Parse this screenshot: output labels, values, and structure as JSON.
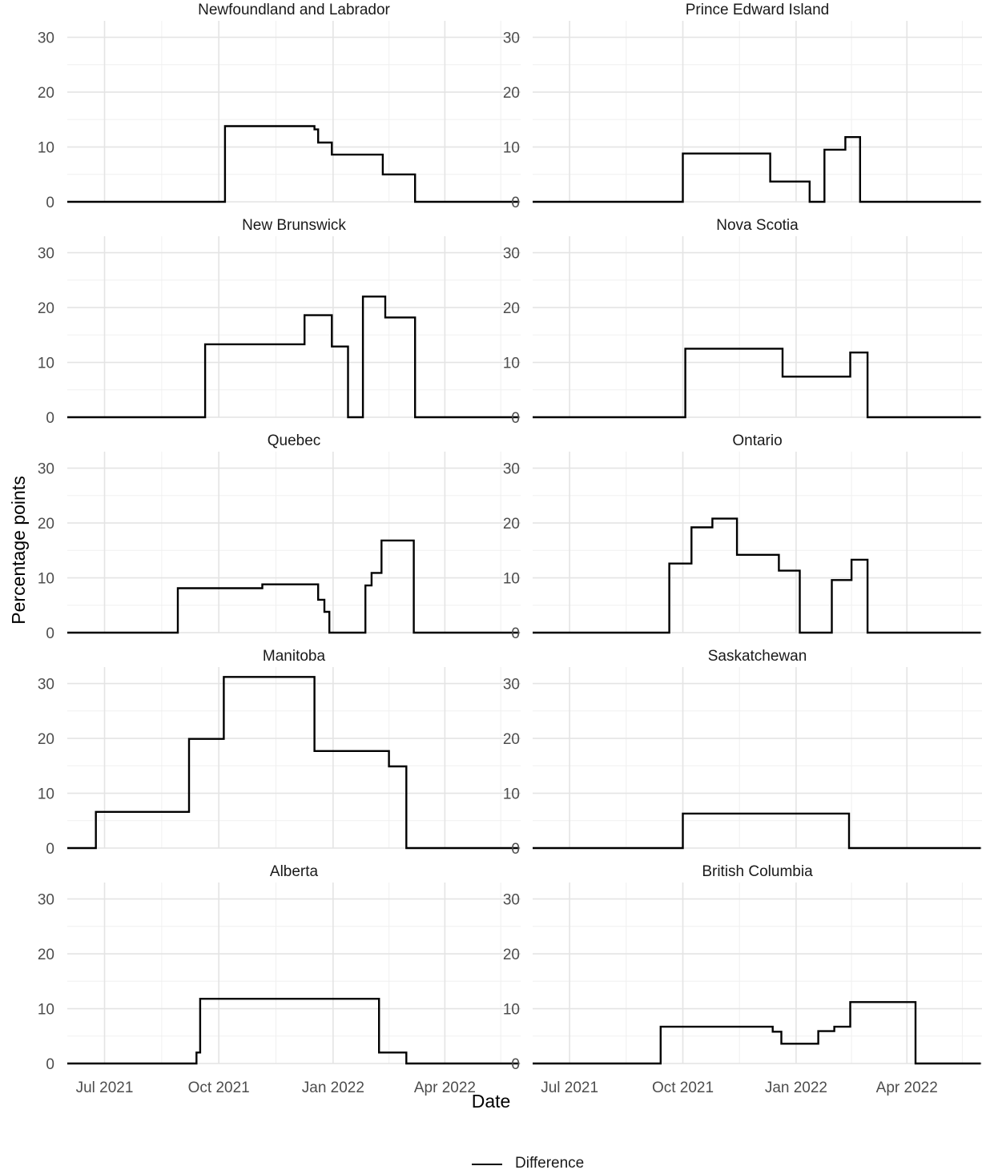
{
  "chart_data": {
    "type": "line",
    "step": true,
    "xlabel": "Date",
    "ylabel": "Percentage points",
    "ylim": [
      0,
      31
    ],
    "y_ticks": [
      0,
      10,
      20,
      30
    ],
    "xlim": [
      "2021-06-01",
      "2022-06-01"
    ],
    "x_ticks": [
      {
        "date": "2021-07-01",
        "label": "Jul 2021"
      },
      {
        "date": "2021-10-01",
        "label": "Oct 2021"
      },
      {
        "date": "2022-01-01",
        "label": "Jan 2022"
      },
      {
        "date": "2022-04-01",
        "label": "Apr 2022"
      }
    ],
    "grid": true,
    "line_color": "#000000",
    "legend": {
      "position": "bottom",
      "entries": [
        "Difference"
      ]
    },
    "facets": [
      {
        "title": "Newfoundland and Labrador",
        "series": [
          {
            "name": "Difference",
            "values": [
              [
                "2021-06-01",
                0
              ],
              [
                "2021-10-06",
                13.8
              ],
              [
                "2021-12-17",
                13.2
              ],
              [
                "2021-12-20",
                10.8
              ],
              [
                "2021-12-31",
                8.6
              ],
              [
                "2022-02-10",
                5.0
              ],
              [
                "2022-03-08",
                0
              ]
            ]
          }
        ]
      },
      {
        "title": "Prince Edward Island",
        "series": [
          {
            "name": "Difference",
            "values": [
              [
                "2021-06-01",
                0
              ],
              [
                "2021-10-01",
                8.8
              ],
              [
                "2021-12-11",
                3.7
              ],
              [
                "2022-01-12",
                0
              ],
              [
                "2022-01-24",
                9.5
              ],
              [
                "2022-02-10",
                11.8
              ],
              [
                "2022-02-22",
                0
              ]
            ]
          }
        ]
      },
      {
        "title": "New Brunswick",
        "series": [
          {
            "name": "Difference",
            "values": [
              [
                "2021-06-01",
                0
              ],
              [
                "2021-09-20",
                13.3
              ],
              [
                "2021-12-09",
                18.6
              ],
              [
                "2021-12-31",
                12.9
              ],
              [
                "2022-01-13",
                0
              ],
              [
                "2022-01-25",
                22.0
              ],
              [
                "2022-02-12",
                18.2
              ],
              [
                "2022-03-08",
                0
              ]
            ]
          }
        ]
      },
      {
        "title": "Nova Scotia",
        "series": [
          {
            "name": "Difference",
            "values": [
              [
                "2021-06-01",
                0
              ],
              [
                "2021-10-03",
                12.5
              ],
              [
                "2021-12-21",
                7.4
              ],
              [
                "2022-02-14",
                11.8
              ],
              [
                "2022-02-28",
                0
              ]
            ]
          }
        ]
      },
      {
        "title": "Quebec",
        "series": [
          {
            "name": "Difference",
            "values": [
              [
                "2021-06-01",
                0
              ],
              [
                "2021-08-29",
                8.1
              ],
              [
                "2021-11-05",
                8.8
              ],
              [
                "2021-12-20",
                6.0
              ],
              [
                "2021-12-25",
                3.8
              ],
              [
                "2021-12-29",
                0
              ],
              [
                "2022-01-27",
                8.6
              ],
              [
                "2022-02-01",
                10.9
              ],
              [
                "2022-02-09",
                16.8
              ],
              [
                "2022-03-07",
                0
              ]
            ]
          }
        ]
      },
      {
        "title": "Ontario",
        "series": [
          {
            "name": "Difference",
            "values": [
              [
                "2021-06-01",
                0
              ],
              [
                "2021-09-20",
                12.6
              ],
              [
                "2021-10-08",
                19.2
              ],
              [
                "2021-10-25",
                20.8
              ],
              [
                "2021-11-14",
                14.2
              ],
              [
                "2021-12-18",
                11.3
              ],
              [
                "2022-01-04",
                0
              ],
              [
                "2022-01-30",
                9.6
              ],
              [
                "2022-02-15",
                13.3
              ],
              [
                "2022-02-28",
                0
              ]
            ]
          }
        ]
      },
      {
        "title": "Manitoba",
        "series": [
          {
            "name": "Difference",
            "values": [
              [
                "2021-06-01",
                0
              ],
              [
                "2021-06-24",
                6.6
              ],
              [
                "2021-09-07",
                19.9
              ],
              [
                "2021-10-05",
                31.2
              ],
              [
                "2021-12-17",
                17.7
              ],
              [
                "2022-02-15",
                14.9
              ],
              [
                "2022-03-01",
                0
              ]
            ]
          }
        ]
      },
      {
        "title": "Saskatchewan",
        "series": [
          {
            "name": "Difference",
            "values": [
              [
                "2021-06-01",
                0
              ],
              [
                "2021-10-01",
                6.3
              ],
              [
                "2022-02-13",
                0
              ]
            ]
          }
        ]
      },
      {
        "title": "Alberta",
        "series": [
          {
            "name": "Difference",
            "values": [
              [
                "2021-06-01",
                0
              ],
              [
                "2021-09-13",
                2.0
              ],
              [
                "2021-09-16",
                11.8
              ],
              [
                "2022-02-07",
                2.0
              ],
              [
                "2022-03-01",
                0
              ]
            ]
          }
        ]
      },
      {
        "title": "British Columbia",
        "series": [
          {
            "name": "Difference",
            "values": [
              [
                "2021-06-01",
                0
              ],
              [
                "2021-09-13",
                6.7
              ],
              [
                "2021-12-13",
                5.8
              ],
              [
                "2021-12-20",
                3.6
              ],
              [
                "2022-01-19",
                5.9
              ],
              [
                "2022-02-01",
                6.7
              ],
              [
                "2022-02-14",
                11.2
              ],
              [
                "2022-04-08",
                0
              ]
            ]
          }
        ]
      }
    ]
  }
}
